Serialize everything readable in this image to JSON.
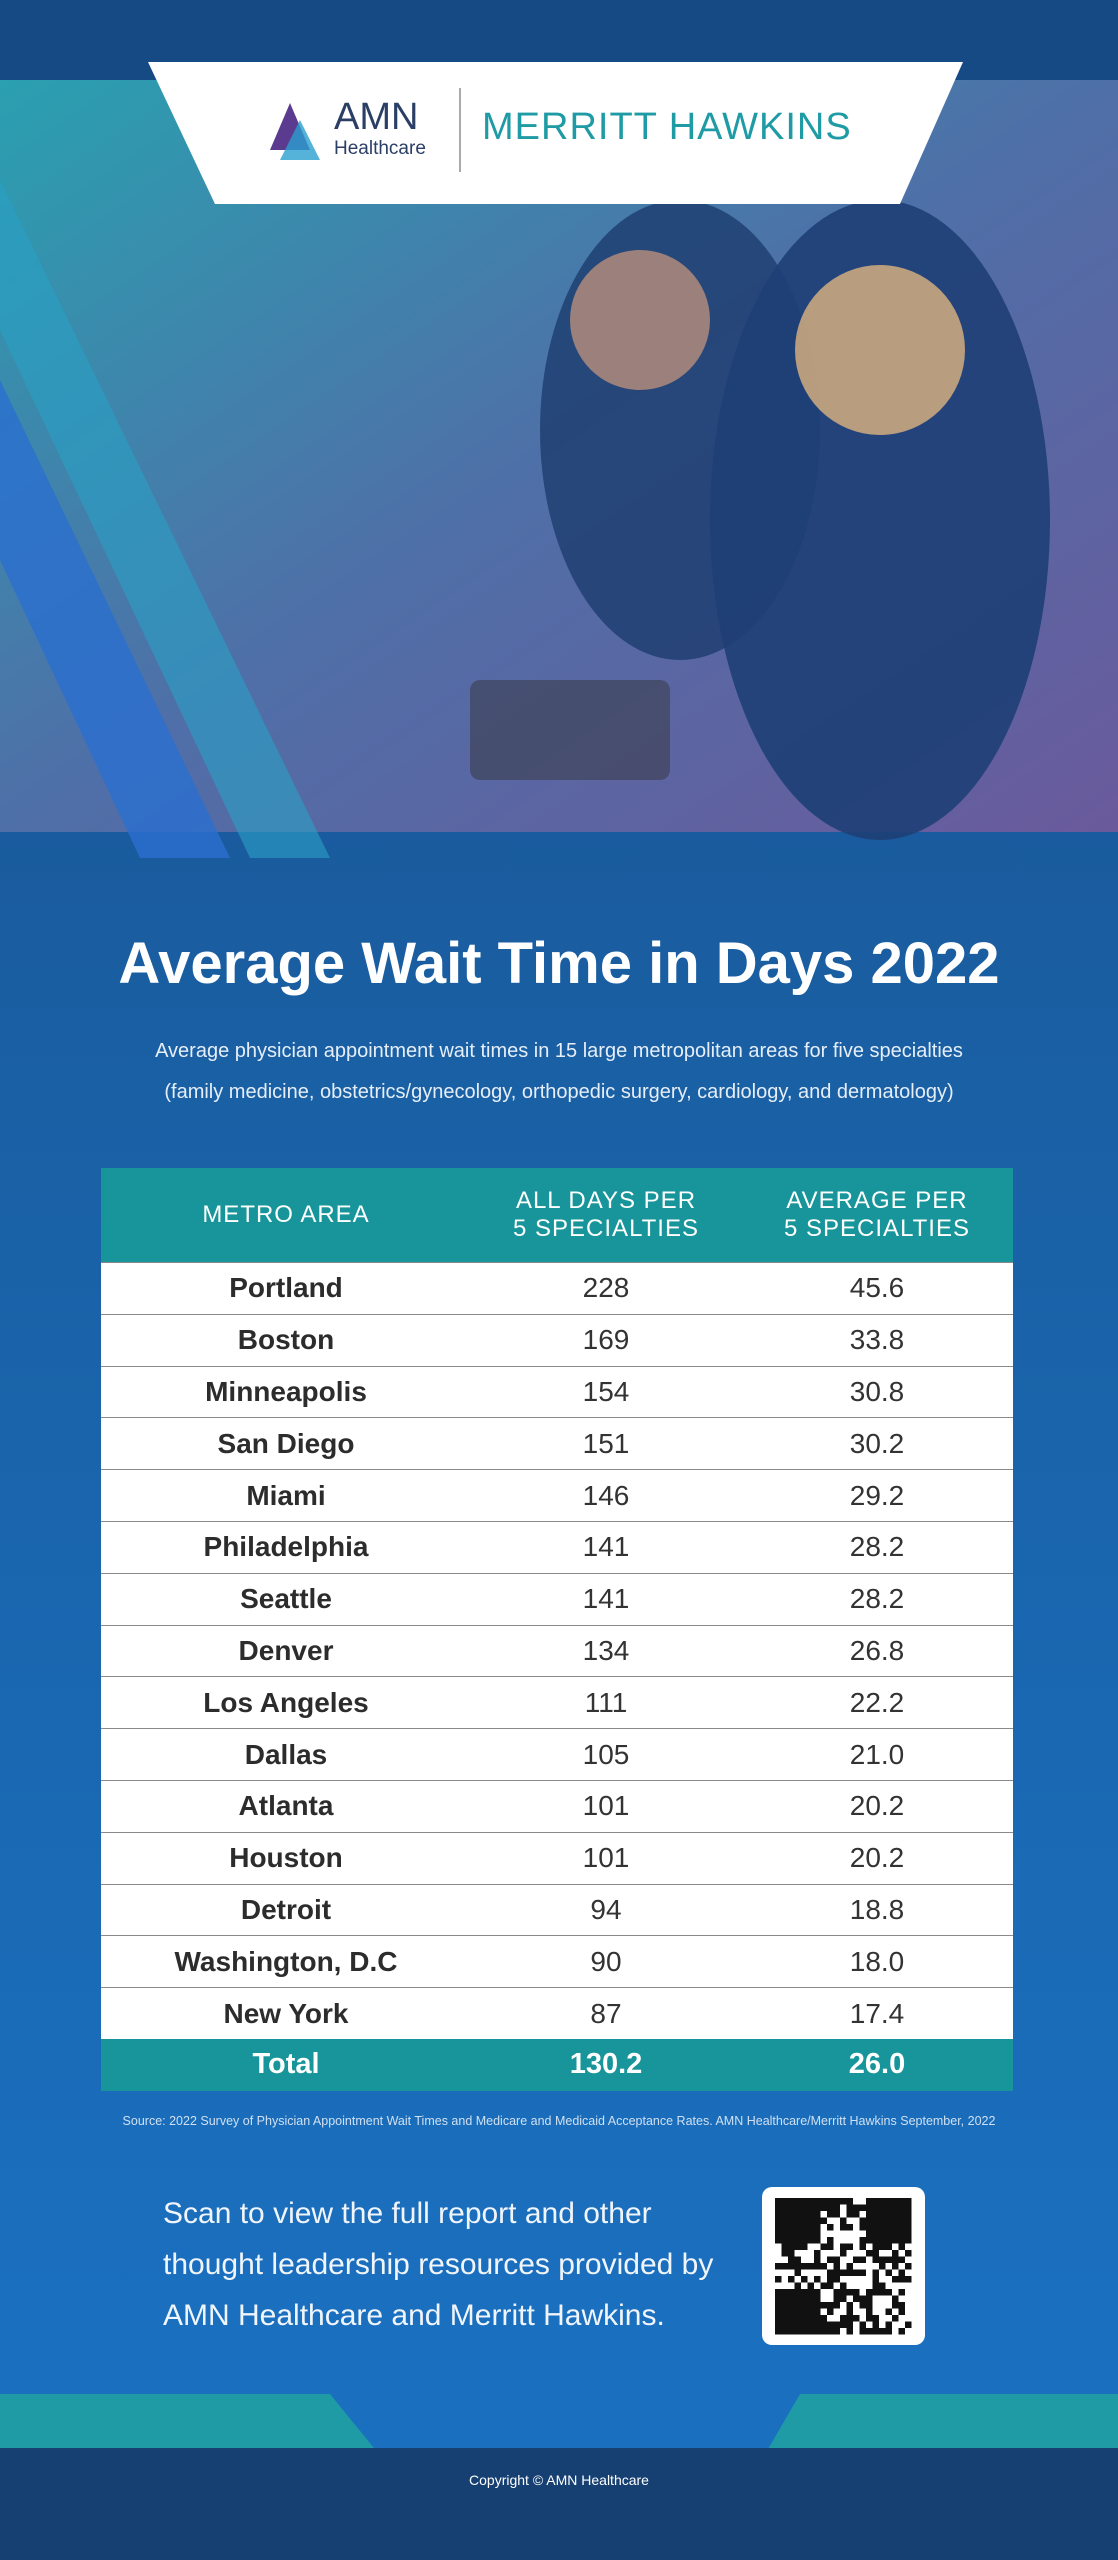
{
  "header": {
    "logo_left": "AMN",
    "logo_left_sub": "Healthcare",
    "logo_right": "MERRITT HAWKINS"
  },
  "title": "Average Wait Time in Days 2022",
  "subtitle": [
    "Average physician appointment wait times in 15 large metropolitan areas for five specialties",
    "(family medicine, obstetrics/gynecology, orthopedic surgery, cardiology, and dermatology)"
  ],
  "table": {
    "columns": [
      [
        "METRO AREA"
      ],
      [
        "ALL DAYS PER",
        "5 SPECIALTIES"
      ],
      [
        "AVERAGE PER",
        "5 SPECIALTIES"
      ]
    ],
    "rows": [
      [
        "Portland",
        "228",
        "45.6"
      ],
      [
        "Boston",
        "169",
        "33.8"
      ],
      [
        "Minneapolis",
        "154",
        "30.8"
      ],
      [
        "San Diego",
        "151",
        "30.2"
      ],
      [
        "Miami",
        "146",
        "29.2"
      ],
      [
        "Philadelphia",
        "141",
        "28.2"
      ],
      [
        "Seattle",
        "141",
        "28.2"
      ],
      [
        "Denver",
        "134",
        "26.8"
      ],
      [
        "Los Angeles",
        "111",
        "22.2"
      ],
      [
        "Dallas",
        "105",
        "21.0"
      ],
      [
        "Atlanta",
        "101",
        "20.2"
      ],
      [
        "Houston",
        "101",
        "20.2"
      ],
      [
        "Detroit",
        "94",
        "18.8"
      ],
      [
        "Washington, D.C",
        "90",
        "18.0"
      ],
      [
        "New York",
        "87",
        "17.4"
      ]
    ],
    "total": [
      "Total",
      "130.2",
      "26.0"
    ]
  },
  "source": "Source: 2022 Survey of Physician Appointment Wait Times and Medicare and Medicaid Acceptance Rates. AMN Healthcare/Merritt Hawkins September, 2022",
  "scan_text": [
    "Scan to view the full report and other",
    "thought leadership resources provided by",
    "AMN Healthcare and Merritt Hawkins."
  ],
  "copyright": "Copyright © AMN Healthcare"
}
